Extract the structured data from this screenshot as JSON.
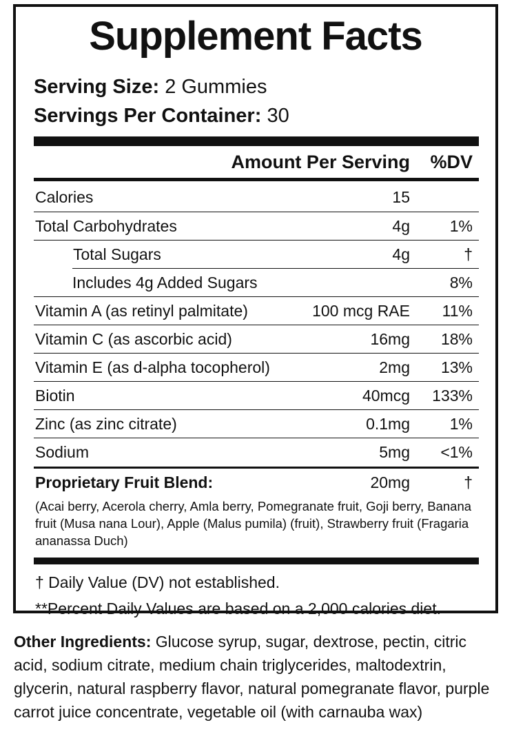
{
  "panel": {
    "title": "Supplement Facts",
    "serving_size_label": "Serving Size:",
    "serving_size_value": "2 Gummies",
    "servings_per_container_label": "Servings Per Container:",
    "servings_per_container_value": "30",
    "header_amount": "Amount Per Serving",
    "header_dv": "%DV",
    "rows": [
      {
        "name": "Calories",
        "amount": "15",
        "dv": ""
      },
      {
        "name": "Total Carbohydrates",
        "amount": "4g",
        "dv": "1%"
      },
      {
        "name": "Total Sugars",
        "amount": "4g",
        "dv": "†"
      },
      {
        "name": "Includes 4g Added Sugars",
        "amount": "",
        "dv": "8%"
      },
      {
        "name": "Vitamin A (as retinyl palmitate)",
        "amount": "100 mcg RAE",
        "dv": "11%"
      },
      {
        "name": "Vitamin C (as ascorbic acid)",
        "amount": "16mg",
        "dv": "18%"
      },
      {
        "name": "Vitamin E (as d-alpha tocopherol)",
        "amount": "2mg",
        "dv": "13%"
      },
      {
        "name": "Biotin",
        "amount": "40mcg",
        "dv": "133%"
      },
      {
        "name": "Zinc (as zinc citrate)",
        "amount": "0.1mg",
        "dv": "1%"
      },
      {
        "name": "Sodium",
        "amount": "5mg",
        "dv": "<1%"
      },
      {
        "name": "Proprietary Fruit Blend:",
        "amount": "20mg",
        "dv": "†"
      }
    ],
    "blend_description": "(Acai berry, Acerola cherry, Amla berry, Pomegranate fruit, Goji berry, Banana fruit (Musa nana Lour), Apple (Malus pumila) (fruit), Strawberry fruit (Fragaria ananassa Duch)",
    "footnote_dv": "† Daily Value (DV) not established.",
    "footnote_percent": "**Percent Daily Values are based on a 2,000 calories diet."
  },
  "other_ingredients": {
    "label": "Other Ingredients:",
    "text": "Glucose syrup, sugar, dextrose, pectin, citric acid, sodium citrate, medium chain triglycerides, maltodextrin, glycerin, natural raspberry flavor, natural pomegranate flavor, purple carrot juice concentrate, vegetable oil (with carnauba wax)"
  }
}
